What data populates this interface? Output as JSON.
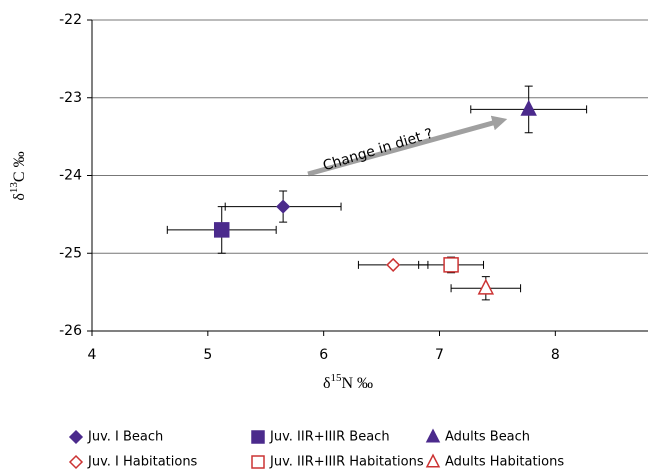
{
  "chart_data": {
    "type": "scatter",
    "annotation": "Change in diet ?",
    "x_label": {
      "symbol": "δ",
      "sup": "15",
      "rest": "N ‰"
    },
    "y_label": {
      "symbol": "δ",
      "sup": "13",
      "rest": "C ‰"
    },
    "xlim": [
      4,
      8.8
    ],
    "ylim": [
      -26,
      -22
    ],
    "xticks": [
      4,
      5,
      6,
      7,
      8
    ],
    "yticks": [
      -26,
      -25,
      -24,
      -23,
      -22
    ],
    "grid": true,
    "legend": "bottom",
    "series": [
      {
        "name": "Juv. I Beach",
        "color": "#4b2a8c",
        "marker": "diamond",
        "filled": true,
        "x": [
          5.65
        ],
        "values": [
          -24.4
        ],
        "xerr": [
          0.5
        ],
        "yerr": [
          0.2
        ]
      },
      {
        "name": "Juv. IIR+IIIR Beach",
        "color": "#4b2a8c",
        "marker": "square",
        "filled": true,
        "x": [
          5.12
        ],
        "values": [
          -24.7
        ],
        "xerr": [
          0.47
        ],
        "yerr": [
          0.3
        ]
      },
      {
        "name": "Adults Beach",
        "color": "#4b2a8c",
        "marker": "triangle",
        "filled": true,
        "x": [
          7.77
        ],
        "values": [
          -23.15
        ],
        "xerr": [
          0.5
        ],
        "yerr": [
          0.3
        ]
      },
      {
        "name": "Juv. I Habitations",
        "color": "#cc3333",
        "marker": "diamond",
        "filled": false,
        "x": [
          6.6
        ],
        "values": [
          -25.15
        ],
        "xerr": [
          0.3
        ],
        "yerr": [
          0.02
        ]
      },
      {
        "name": "Juv. IIR+IIIR Habitations",
        "color": "#cc3333",
        "marker": "square",
        "filled": false,
        "x": [
          7.1
        ],
        "values": [
          -25.15
        ],
        "xerr": [
          0.28
        ],
        "yerr": [
          0.1
        ]
      },
      {
        "name": "Adults Habitations",
        "color": "#cc3333",
        "marker": "triangle",
        "filled": false,
        "x": [
          7.4
        ],
        "values": [
          -25.45
        ],
        "xerr": [
          0.3
        ],
        "yerr": [
          0.15
        ]
      }
    ]
  }
}
